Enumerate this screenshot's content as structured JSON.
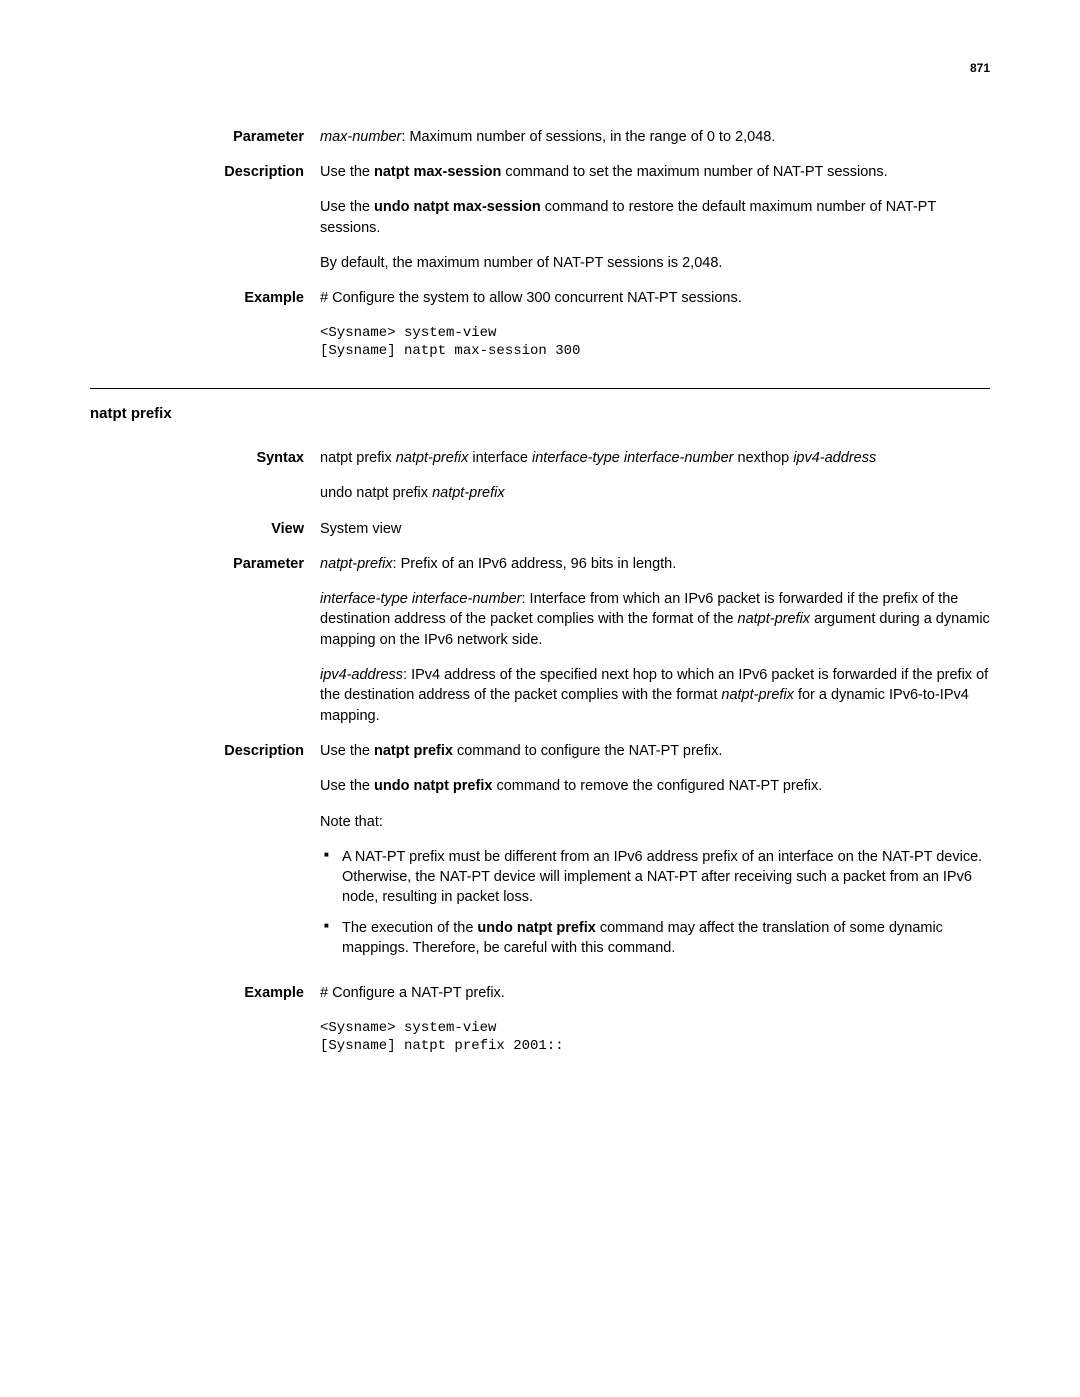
{
  "page_number": "871",
  "sec1": {
    "parameter": {
      "label": "Parameter",
      "text_prefix": "max-number",
      "text_rest": ": Maximum number of sessions, in the range of 0 to 2,048."
    },
    "description": {
      "label": "Description",
      "p1a": "Use the ",
      "p1b": "natpt max-session",
      "p1c": " command to set the maximum number of NAT-PT sessions.",
      "p2a": "Use the ",
      "p2b": "undo natpt max-session",
      "p2c": " command to restore the default maximum number of NAT-PT sessions.",
      "p3": "By default, the maximum number of NAT-PT sessions is 2,048."
    },
    "example": {
      "label": "Example",
      "intro": "# Configure the system to allow 300 concurrent NAT-PT sessions.",
      "code": "<Sysname> system-view\n[Sysname] natpt max-session 300"
    }
  },
  "sec2": {
    "title": "natpt prefix",
    "syntax": {
      "label": "Syntax",
      "cmd1_parts": {
        "a": "natpt prefix",
        "b": "natpt-prefix",
        "c": "interface",
        "d": "interface-type interface-number",
        "e": "nexthop",
        "f": "ipv4-address"
      },
      "cmd2_a": "undo natpt prefix",
      "cmd2_b": "natpt-prefix"
    },
    "view": {
      "label": "View",
      "text": "System view"
    },
    "parameter": {
      "label": "Parameter",
      "p1_a": "natpt-prefix",
      "p1_b": ": Prefix of an IPv6 address, 96 bits in length.",
      "p2_a": "interface-type interface-number",
      "p2_b": ": Interface from which an IPv6 packet is forwarded if the prefix of the destination address of the packet complies with the format of the ",
      "p2_c": "natpt-prefix",
      "p2_d": " argument during a dynamic mapping on the IPv6 network side.",
      "p3_a": "ipv4-address",
      "p3_b": ": IPv4 address of the specified next hop to which an IPv6 packet is forwarded if the prefix of the destination address of the packet complies with the format ",
      "p3_c": "natpt-prefix",
      "p3_d": " for a dynamic IPv6-to-IPv4 mapping."
    },
    "description": {
      "label": "Description",
      "p1a": "Use the ",
      "p1b": "natpt prefix",
      "p1c": " command to configure the NAT-PT prefix.",
      "p2a": "Use the ",
      "p2b": "undo natpt prefix",
      "p2c": " command to remove the configured NAT-PT prefix.",
      "note_intro": "Note that:",
      "bullet1": "A NAT-PT prefix must be different from an IPv6 address prefix of an interface on the NAT-PT device. Otherwise, the NAT-PT device will implement a NAT-PT after receiving such a packet from an IPv6 node, resulting in packet loss.",
      "bullet2_a": "The execution of the ",
      "bullet2_b": "undo natpt prefix",
      "bullet2_c": " command may affect the translation of some dynamic mappings. Therefore, be careful with this command."
    },
    "example": {
      "label": "Example",
      "intro": "# Configure a NAT-PT prefix.",
      "code": "<Sysname> system-view\n[Sysname] natpt prefix 2001::"
    }
  }
}
